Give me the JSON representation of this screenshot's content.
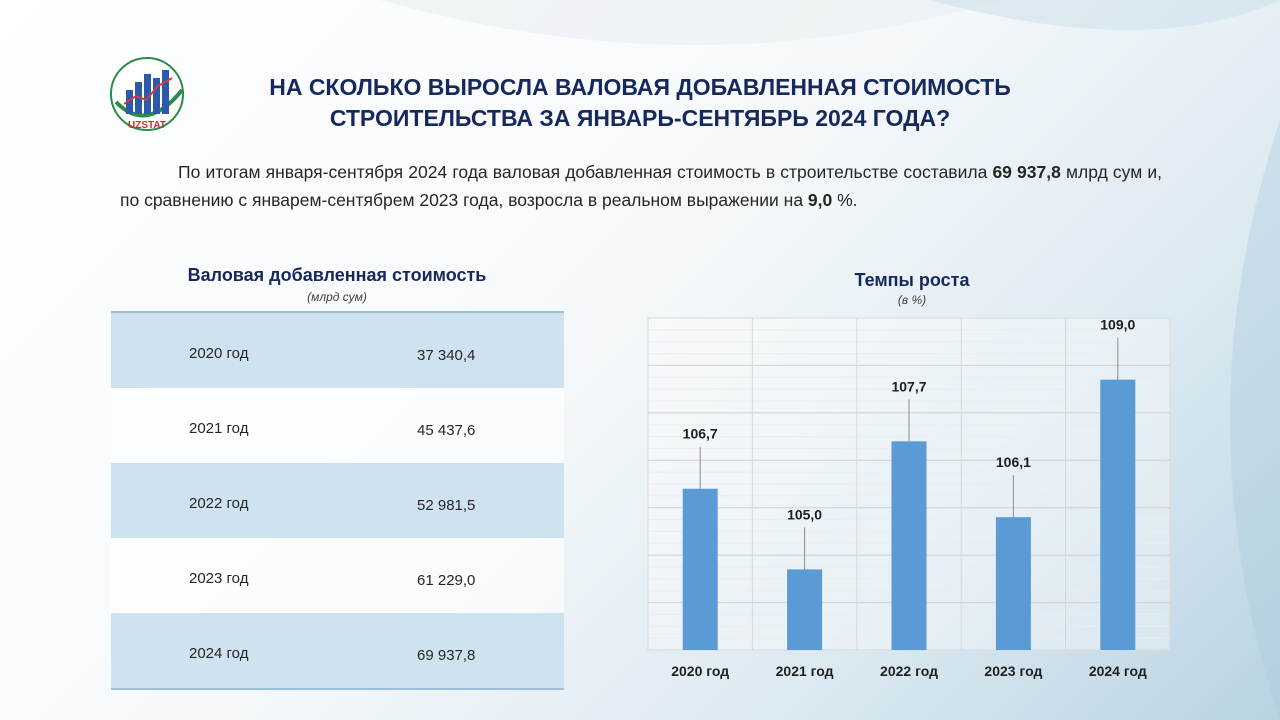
{
  "logo": {
    "text": "UZSTAT"
  },
  "header": {
    "title_line1": "НА СКОЛЬКО ВЫРОСЛА ВАЛОВАЯ ДОБАВЛЕННАЯ СТОИМОСТЬ",
    "title_line2": "СТРОИТЕЛЬСТВА ЗА ЯНВАРЬ-СЕНТЯБРЬ 2024 ГОДА?"
  },
  "intro": {
    "part1": "По итогам января-сентября 2024 года валовая добавленная стоимость в строительстве составила ",
    "value": "69 937,8",
    "part2": " млрд сум и, по сравнению с январем-сентябрем 2023 года, возросла в реальном выражении на ",
    "growth": "9,0",
    "part3": " %."
  },
  "table": {
    "title": "Валовая добавленная стоимость",
    "unit": "(млрд сум)",
    "rows": [
      {
        "year": "2020 год",
        "value": "37 340,4"
      },
      {
        "year": "2021 год",
        "value": "45 437,6"
      },
      {
        "year": "2022 год",
        "value": "52 981,5"
      },
      {
        "year": "2023 год",
        "value": "61 229,0"
      },
      {
        "year": "2024 год",
        "value": "69 937,8"
      }
    ]
  },
  "chart_data": {
    "type": "bar",
    "title": "Темпы роста",
    "subtitle": "(в %)",
    "categories": [
      "2020 год",
      "2021 год",
      "2022 год",
      "2023 год",
      "2024 год"
    ],
    "values": [
      106.7,
      105.0,
      107.7,
      106.1,
      109.0
    ],
    "value_labels": [
      "106,7",
      "105,0",
      "107,7",
      "106,1",
      "109,0"
    ],
    "ylim": [
      103.3,
      110.3
    ],
    "grid": true,
    "colors": {
      "bar": "#5b9bd5",
      "title": "#16295c"
    }
  }
}
